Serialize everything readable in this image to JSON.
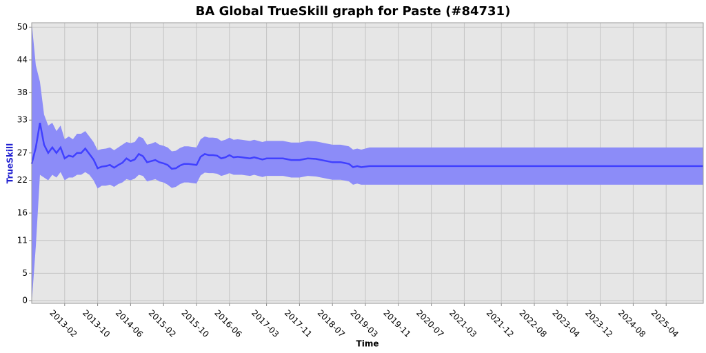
{
  "chart_data": {
    "type": "band-line",
    "title": "BA Global TrueSkill graph for Paste (#84731)",
    "x_label": "Time",
    "y_label": "TrueSkill",
    "x": [
      "2012-06",
      "2012-07",
      "2012-08",
      "2012-09",
      "2012-10",
      "2012-11",
      "2012-12",
      "2013-01",
      "2013-02",
      "2013-03",
      "2013-04",
      "2013-05",
      "2013-06",
      "2013-07",
      "2013-08",
      "2013-09",
      "2013-10",
      "2013-11",
      "2013-12",
      "2014-01",
      "2014-02",
      "2014-03",
      "2014-04",
      "2014-05",
      "2014-06",
      "2014-07",
      "2014-08",
      "2014-09",
      "2014-10",
      "2014-11",
      "2014-12",
      "2015-01",
      "2015-02",
      "2015-03",
      "2015-04",
      "2015-05",
      "2015-06",
      "2015-07",
      "2015-08",
      "2015-09",
      "2015-10",
      "2015-11",
      "2015-12",
      "2016-01",
      "2016-02",
      "2016-03",
      "2016-04",
      "2016-05",
      "2016-06",
      "2016-07",
      "2016-08",
      "2016-09",
      "2016-10",
      "2016-11",
      "2016-12",
      "2017-02",
      "2017-03",
      "2017-05",
      "2017-07",
      "2017-09",
      "2017-11",
      "2018-01",
      "2018-03",
      "2018-05",
      "2018-07",
      "2018-09",
      "2018-11",
      "2018-12",
      "2019-01",
      "2019-02",
      "2019-04",
      "2026-01"
    ],
    "values": [
      25,
      28,
      32.5,
      28.5,
      27,
      28,
      27,
      28,
      26,
      26.5,
      26.3,
      27,
      27,
      27.8,
      26.8,
      25.8,
      24.2,
      24.5,
      24.6,
      24.8,
      24.3,
      24.8,
      25.2,
      26,
      25.5,
      25.8,
      26.8,
      26.4,
      25.3,
      25.5,
      25.7,
      25.3,
      25.1,
      24.8,
      24.1,
      24.2,
      24.7,
      25,
      25,
      24.9,
      24.8,
      26.3,
      26.8,
      26.6,
      26.6,
      26.5,
      26,
      26.2,
      26.6,
      26.2,
      26.3,
      26.2,
      26.1,
      26,
      26.2,
      25.8,
      26,
      26,
      26,
      25.7,
      25.7,
      26,
      25.9,
      25.6,
      25.3,
      25.3,
      25,
      24.4,
      24.6,
      24.4,
      24.6,
      24.6
    ],
    "upper": [
      50.8,
      43,
      40,
      34,
      32,
      32.5,
      31,
      32,
      29.5,
      30,
      29.5,
      30.5,
      30.5,
      31,
      30,
      29,
      27.5,
      27.7,
      27.8,
      28,
      27.5,
      28,
      28.5,
      29,
      28.8,
      29,
      30,
      29.7,
      28.5,
      28.7,
      29,
      28.5,
      28.3,
      28,
      27.3,
      27.4,
      27.9,
      28.2,
      28.2,
      28.1,
      28,
      29.5,
      30,
      29.8,
      29.8,
      29.7,
      29.2,
      29.4,
      29.8,
      29.4,
      29.5,
      29.4,
      29.3,
      29.2,
      29.4,
      29,
      29.2,
      29.2,
      29.2,
      28.9,
      28.9,
      29.2,
      29.1,
      28.8,
      28.5,
      28.5,
      28.2,
      27.6,
      27.8,
      27.6,
      28,
      28
    ],
    "lower": [
      -0.5,
      10,
      23,
      22.5,
      22,
      23,
      22.5,
      23.5,
      22,
      22.5,
      22.5,
      23,
      23,
      23.5,
      23,
      22,
      20.5,
      21,
      21,
      21.2,
      20.8,
      21.3,
      21.6,
      22.2,
      22,
      22.3,
      23,
      22.8,
      21.8,
      22,
      22.2,
      21.8,
      21.6,
      21.2,
      20.6,
      20.8,
      21.3,
      21.6,
      21.6,
      21.5,
      21.4,
      22.9,
      23.4,
      23.3,
      23.3,
      23.2,
      22.8,
      23,
      23.3,
      23,
      23,
      23,
      22.9,
      22.8,
      23,
      22.6,
      22.8,
      22.8,
      22.8,
      22.5,
      22.5,
      22.8,
      22.7,
      22.4,
      22.1,
      22.1,
      21.8,
      21.2,
      21.4,
      21.2,
      21.2,
      21.2
    ],
    "line_color": "#4040ff",
    "band_color": "#8c8cf8",
    "xlim": [
      "2012-06",
      "2026-01"
    ],
    "xticks": [
      "2013-02",
      "2013-10",
      "2014-06",
      "2015-02",
      "2015-10",
      "2016-06",
      "2017-03",
      "2017-11",
      "2018-07",
      "2019-03",
      "2019-11",
      "2020-07",
      "2021-03",
      "2021-12",
      "2022-08",
      "2023-04",
      "2023-12",
      "2024-08",
      "2025-04"
    ],
    "ylim": [
      -0.5,
      50.8
    ],
    "yticks": [
      0,
      5,
      11,
      16,
      22,
      27,
      33,
      38,
      44,
      50
    ],
    "grid": true
  }
}
